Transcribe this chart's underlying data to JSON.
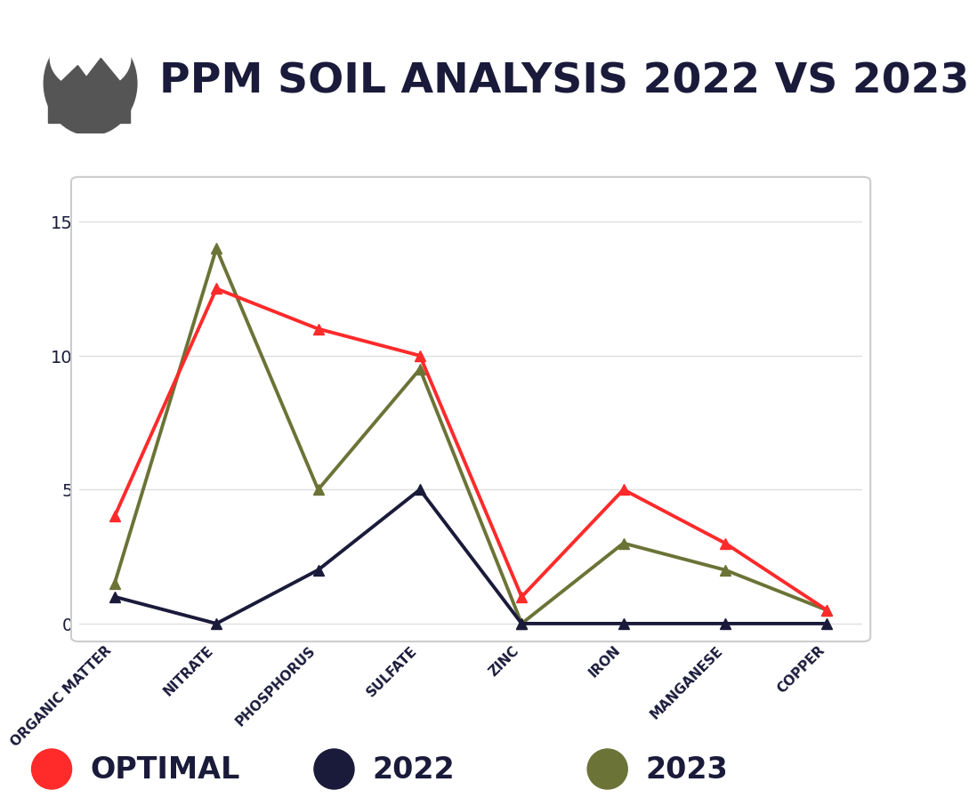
{
  "title": "PPM SOIL ANALYSIS 2022 VS 2023",
  "categories": [
    "ORGANIC MATTER",
    "NITRATE",
    "PHOSPHORUS",
    "SULFATE",
    "ZINC",
    "IRON",
    "MANGANESE",
    "COPPER"
  ],
  "optimal": [
    4,
    12.5,
    11,
    10,
    1,
    5,
    3,
    0.5
  ],
  "year2022": [
    1,
    0,
    2,
    5,
    0,
    0,
    0,
    0
  ],
  "year2023": [
    1.5,
    14,
    5,
    9.5,
    0,
    3,
    2,
    0.5
  ],
  "optimal_color": "#FF2A2A",
  "year2022_color": "#1a1a3a",
  "year2023_color": "#6b7336",
  "title_color": "#1a1a3a",
  "background_color": "#ffffff",
  "chart_bg_color": "#ffffff",
  "border_color": "#cccccc",
  "grid_color": "#e0e0e0",
  "ylim": [
    -0.5,
    16.5
  ],
  "yticks": [
    0,
    5,
    10,
    15
  ],
  "legend_labels": [
    "OPTIMAL",
    "2022",
    "2023"
  ],
  "icon_color": "#555555",
  "title_fontsize": 34,
  "legend_fontsize": 24,
  "axis_fontsize": 11,
  "tick_fontsize": 14
}
